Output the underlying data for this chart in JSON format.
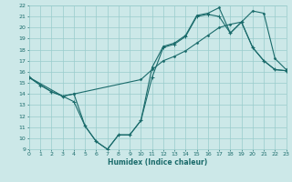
{
  "xlabel": "Humidex (Indice chaleur)",
  "bg_color": "#cce8e8",
  "line_color": "#1a6b6b",
  "grid_color": "#99cccc",
  "ylim": [
    9,
    22
  ],
  "xlim": [
    0,
    23
  ],
  "yticks": [
    9,
    10,
    11,
    12,
    13,
    14,
    15,
    16,
    17,
    18,
    19,
    20,
    21,
    22
  ],
  "xticks": [
    0,
    1,
    2,
    3,
    4,
    5,
    6,
    7,
    8,
    9,
    10,
    11,
    12,
    13,
    14,
    15,
    16,
    17,
    18,
    19,
    20,
    21,
    22,
    23
  ],
  "line1_x": [
    0,
    1,
    2,
    3,
    4,
    5,
    6,
    7,
    8,
    9,
    10,
    11,
    12,
    13,
    14,
    15,
    16,
    17,
    18,
    19,
    20,
    21,
    22,
    23
  ],
  "line1_y": [
    15.5,
    14.8,
    14.2,
    13.8,
    13.3,
    11.1,
    9.7,
    9.0,
    10.3,
    10.3,
    11.6,
    15.5,
    18.2,
    18.5,
    19.2,
    21.0,
    21.2,
    21.0,
    19.5,
    20.5,
    18.2,
    17.0,
    16.2,
    16.1
  ],
  "line2_x": [
    0,
    3,
    4,
    10,
    11,
    12,
    13,
    14,
    15,
    16,
    17,
    18,
    19,
    20,
    21,
    22,
    23
  ],
  "line2_y": [
    15.5,
    13.8,
    14.0,
    15.3,
    16.2,
    17.0,
    17.4,
    17.9,
    18.6,
    19.3,
    20.0,
    20.3,
    20.5,
    21.5,
    21.3,
    17.2,
    16.2
  ],
  "line3_x": [
    0,
    1,
    2,
    3,
    4,
    5,
    6,
    7,
    8,
    9,
    10,
    11,
    12,
    13,
    14,
    15,
    16,
    17,
    18,
    19,
    20,
    21,
    22,
    23
  ],
  "line3_y": [
    15.5,
    14.8,
    14.2,
    13.8,
    14.0,
    11.1,
    9.7,
    9.0,
    10.3,
    10.3,
    11.6,
    16.4,
    18.3,
    18.6,
    19.3,
    21.1,
    21.3,
    21.8,
    19.5,
    20.5,
    18.2,
    17.0,
    16.2,
    16.1
  ]
}
